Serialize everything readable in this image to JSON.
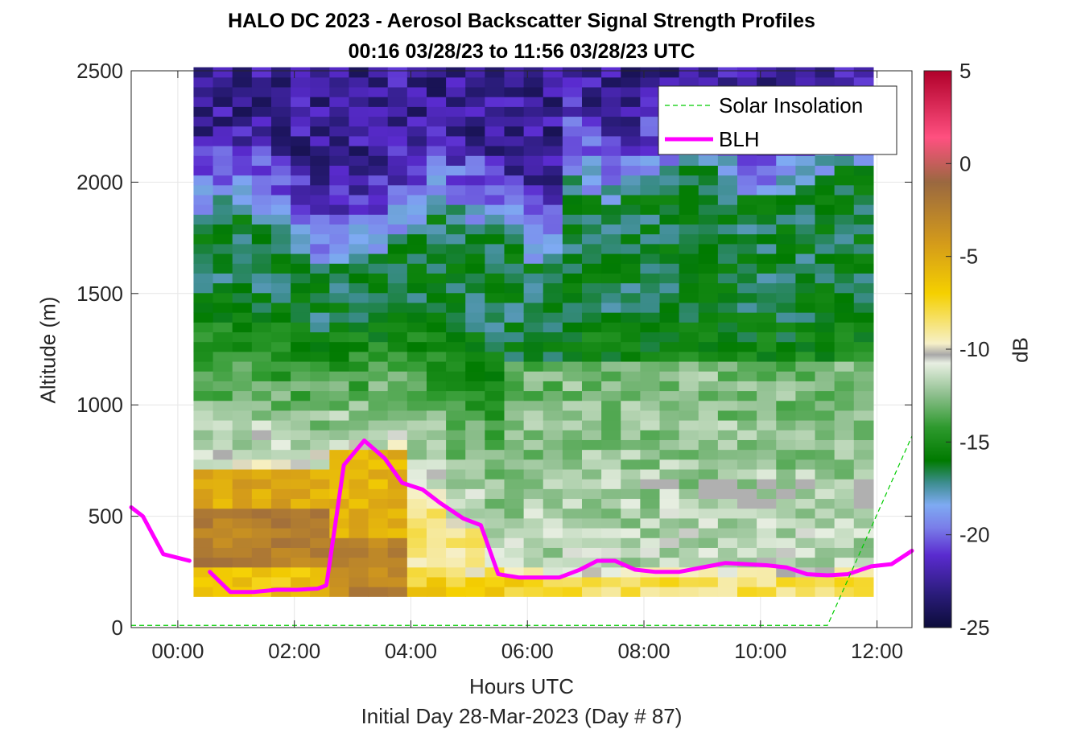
{
  "title_line1": "HALO DC 2023 - Aerosol Backscatter Signal Strength Profiles",
  "title_line2": "00:16 03/28/23 to 11:56 03/28/23  UTC",
  "xlabel_line1": "Hours UTC",
  "xlabel_line2": "Initial Day 28-Mar-2023 (Day # 87)",
  "ylabel": "Altitude (m)",
  "colorbar_label": "dB",
  "colors": {
    "blh_line": "#ff00ff",
    "solar_line": "#00cc00",
    "missing": "#b0b0b0",
    "grid": "#e6e6e6"
  },
  "chart_data": {
    "type": "heatmap",
    "title": "HALO DC 2023 - Aerosol Backscatter Signal Strength Profiles",
    "subtitle": "00:16 03/28/23 to 11:56 03/28/23  UTC",
    "xlabel": "Hours UTC",
    "ylabel": "Altitude (m)",
    "xlim": [
      -0.8,
      12.6
    ],
    "ylim": [
      0,
      2500
    ],
    "x_ticks": [
      0,
      2,
      4,
      6,
      8,
      10,
      12
    ],
    "x_tick_labels": [
      "00:00",
      "02:00",
      "04:00",
      "06:00",
      "08:00",
      "10:00",
      "12:00"
    ],
    "y_ticks": [
      0,
      500,
      1000,
      1500,
      2000,
      2500
    ],
    "y_tick_labels": [
      "0",
      "500",
      "1000",
      "1500",
      "2000",
      "2500"
    ],
    "grid": true,
    "heatmap": {
      "x_start_hours": 0.27,
      "x_end_hours": 11.93,
      "x_bin_hours": 0.3333,
      "y_start_m": 140,
      "y_end_m": 2500,
      "y_bin_m": 44,
      "units": "dB",
      "approx_structure": "Aerosol layer about -3 to -7 dB below ~700 m from 00:16 to 04:00 UTC; about -8 to -11 dB near surface after 04:00; -12 to -16 dB from ~800 to ~1700 m; -18 to -25 dB above ~1800 m; missing (grey) patches near 600 m between 08:00 and 11:00"
    },
    "colorbar": {
      "label": "dB",
      "range": [
        -25,
        5
      ],
      "ticks": [
        5,
        0,
        -5,
        -10,
        -15,
        -20,
        -25
      ],
      "tick_labels": [
        "5",
        "0",
        "-5",
        "-10",
        "-15",
        "-20",
        "-25"
      ]
    },
    "legend": {
      "position": "top-right",
      "entries": [
        "Solar Insolation",
        "BLH"
      ]
    },
    "series": [
      {
        "name": "BLH",
        "color": "#ff00ff",
        "segments": [
          {
            "x": [
              -0.8,
              -0.6,
              -0.25,
              0.2
            ],
            "y": [
              540,
              500,
              330,
              300
            ]
          },
          {
            "x": [
              0.55,
              0.9,
              1.3,
              1.7,
              2.05,
              2.4,
              2.55,
              2.85,
              3.2,
              3.55,
              3.85,
              4.2,
              4.5,
              4.9,
              5.2,
              5.5,
              5.85,
              6.2,
              6.55,
              6.9,
              7.2,
              7.5,
              7.85,
              8.2,
              8.6,
              9.0,
              9.4,
              9.75,
              10.1,
              10.45,
              10.8,
              11.15,
              11.5,
              11.9,
              12.25,
              12.6
            ],
            "y": [
              250,
              160,
              160,
              170,
              170,
              175,
              190,
              730,
              840,
              760,
              650,
              620,
              560,
              490,
              460,
              240,
              225,
              225,
              225,
              260,
              300,
              300,
              260,
              250,
              250,
              270,
              290,
              285,
              280,
              270,
              240,
              235,
              240,
              275,
              285,
              345
            ]
          }
        ]
      },
      {
        "name": "Solar Insolation",
        "color": "#00cc00",
        "style": "dashed",
        "x": [
          -0.8,
          11.15,
          12.6
        ],
        "y": [
          10,
          10,
          860
        ]
      }
    ]
  }
}
